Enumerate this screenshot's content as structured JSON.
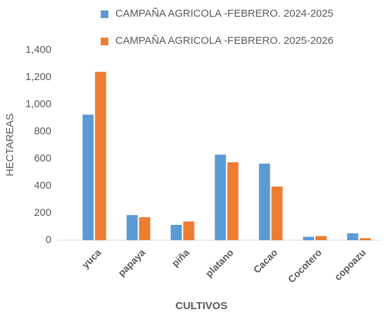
{
  "chart_data": {
    "type": "bar",
    "categories": [
      "yuca",
      "papaya",
      "piña",
      "platano",
      "Cacao",
      "Cocotero",
      "copoazu"
    ],
    "series": [
      {
        "name": "CAMPAÑA AGRICOLA -FEBRERO. 2024-2025",
        "color": "#5b9bd5",
        "values": [
          925,
          185,
          113,
          630,
          564,
          25,
          51
        ]
      },
      {
        "name": "CAMPAÑA AGRICOLA -FEBRERO. 2025-2026",
        "color": "#ed7d31",
        "values": [
          1240,
          170,
          138,
          574,
          395,
          30,
          15
        ]
      }
    ],
    "x_label": "CULTIVOS",
    "y_label": "HECTAREAS",
    "ylim": [
      0,
      1400
    ],
    "yticks": [
      0,
      200,
      400,
      600,
      800,
      {
        "value": 1000,
        "label": "1,000"
      },
      {
        "value": 1200,
        "label": "1,200"
      },
      {
        "value": 1400,
        "label": "1,400"
      }
    ],
    "grid": false,
    "legend": "top"
  }
}
